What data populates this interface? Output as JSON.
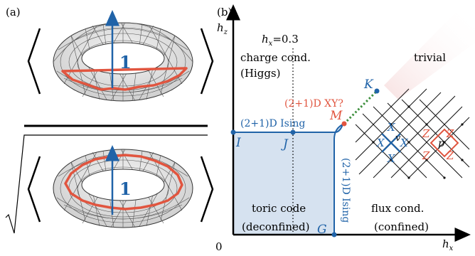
{
  "panel_a": {
    "label": "(a)",
    "top_arrow_label": "1",
    "bottom_arrow_label": "1"
  },
  "panel_b": {
    "label": "(b)",
    "axis_y": "h",
    "axis_y_sub": "z",
    "axis_x": "h",
    "axis_x_sub": "x",
    "origin": "0",
    "hx_line_label": "h",
    "hx_line_sub": "x",
    "hx_line_value": "=0.3",
    "regions": {
      "charge_line1": "charge cond.",
      "charge_line2": "(Higgs)",
      "trivial": "trivial",
      "toric_line1": "toric code",
      "toric_line2": "(deconfined)",
      "flux_line1": "flux cond.",
      "flux_line2": "(confined)"
    },
    "transitions": {
      "ising_horizontal": "(2+1)D Ising",
      "ising_vertical": "(2+1)D Ising",
      "xy": "(2+1)D XY?"
    },
    "points": {
      "I": "I",
      "J": "J",
      "G": "G",
      "M": "M",
      "K": "K"
    },
    "lattice": {
      "X1": "X",
      "X2": "X",
      "X3": "X",
      "X4": "X",
      "v": "v",
      "Z1": "Z",
      "Z2": "Z",
      "Z3": "Z",
      "Z4": "Z",
      "p": "p"
    }
  },
  "colors": {
    "blue": "#2063a8",
    "red": "#e1553f",
    "green": "#3d8f3d",
    "region_fill": "#d6e2f0"
  }
}
